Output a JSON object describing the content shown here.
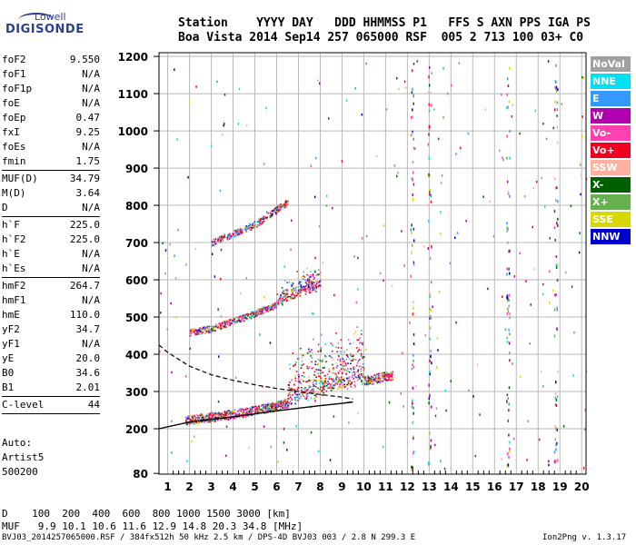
{
  "logo": {
    "line1": "Lowell",
    "line2": "DIGISONDE"
  },
  "header": {
    "line1": "Station    YYYY DAY   DDD HHMMSS P1   FFS S AXN PPS IGA PS",
    "line2": "Boa Vista 2014 Sep14 257 065000 RSF  005 2 713 100 03+ C0"
  },
  "params": {
    "g1": [
      {
        "name": "foF2",
        "value": "9.550"
      },
      {
        "name": "foF1",
        "value": "N/A"
      },
      {
        "name": "foF1p",
        "value": "N/A"
      },
      {
        "name": "foE",
        "value": "N/A"
      },
      {
        "name": "foEp",
        "value": "0.47"
      },
      {
        "name": "fxI",
        "value": "9.25"
      },
      {
        "name": "foEs",
        "value": "N/A"
      },
      {
        "name": "fmin",
        "value": "1.75"
      }
    ],
    "g2": [
      {
        "name": "MUF(D)",
        "value": "34.79"
      },
      {
        "name": "M(D)",
        "value": "3.64"
      },
      {
        "name": "D",
        "value": "N/A"
      }
    ],
    "g3": [
      {
        "name": "h`F",
        "value": "225.0"
      },
      {
        "name": "h`F2",
        "value": "225.0"
      },
      {
        "name": "h`E",
        "value": "N/A"
      },
      {
        "name": "h`Es",
        "value": "N/A"
      }
    ],
    "g4": [
      {
        "name": "hmF2",
        "value": "264.7"
      },
      {
        "name": "hmF1",
        "value": "N/A"
      },
      {
        "name": "hmE",
        "value": "110.0"
      },
      {
        "name": "yF2",
        "value": "34.7"
      },
      {
        "name": "yF1",
        "value": "N/A"
      },
      {
        "name": "yE",
        "value": "20.0"
      },
      {
        "name": "B0",
        "value": "34.6"
      },
      {
        "name": "B1",
        "value": "2.01"
      }
    ],
    "g5": [
      {
        "name": "C-level",
        "value": "44"
      }
    ]
  },
  "auto": {
    "line1": "Auto:",
    "line2": "Artist5",
    "line3": "500200"
  },
  "bottom": {
    "d_row": "D    100  200  400  600  800 1000 1500 3000 [km]",
    "muf_row": "MUF   9.9 10.1 10.6 11.6 12.9 14.8 20.3 34.8 [MHz]"
  },
  "footer": {
    "left": "BVJ03_2014257065000.RSF / 384fx512h 50 kHz 2.5 km / DPS-4D BVJ03 003 / 2.8 N 299.3 E",
    "right": "Ion2Png v. 1.3.17"
  },
  "legend": [
    {
      "label": "NoVal",
      "color": "#a0a0a0"
    },
    {
      "label": "NNE",
      "color": "#00e0f0"
    },
    {
      "label": "E",
      "color": "#3399ff"
    },
    {
      "label": "W",
      "color": "#b000b0"
    },
    {
      "label": "Vo-",
      "color": "#ff40b0"
    },
    {
      "label": "Vo+",
      "color": "#f00020"
    },
    {
      "label": "SSW",
      "color": "#ffb0a0"
    },
    {
      "label": "X-",
      "color": "#006000"
    },
    {
      "label": "X+",
      "color": "#66b050"
    },
    {
      "label": "SSE",
      "color": "#d8d800"
    },
    {
      "label": "NNW",
      "color": "#0000cc"
    }
  ],
  "chart_data": {
    "type": "scatter",
    "title": "",
    "xlabel": "",
    "ylabel": "",
    "xlim": [
      0.6,
      20.2
    ],
    "ylim": [
      78,
      1210
    ],
    "x_ticks": [
      1,
      2,
      3,
      4,
      5,
      6,
      7,
      8,
      9,
      10,
      11,
      12,
      13,
      14,
      15,
      16,
      17,
      18,
      19,
      20
    ],
    "y_ticks": [
      80,
      200,
      300,
      400,
      500,
      600,
      700,
      800,
      900,
      1000,
      1100,
      1200
    ],
    "grid": true,
    "echo_traces": [
      {
        "name": "",
        "x": [
          1.8,
          3,
          4,
          5,
          6,
          7,
          8,
          9,
          10,
          11.3
        ],
        "y": [
          225,
          232,
          240,
          250,
          262,
          280,
          300,
          318,
          330,
          345
        ]
      },
      {
        "name": "",
        "x": [
          2,
          3,
          4,
          5,
          6,
          7,
          8
        ],
        "y": [
          460,
          470,
          490,
          510,
          535,
          565,
          580
        ]
      },
      {
        "name": "",
        "x": [
          3,
          4,
          5,
          6,
          6.5
        ],
        "y": [
          700,
          725,
          750,
          790,
          810
        ]
      }
    ],
    "profile_solid": {
      "x": [
        0.6,
        2,
        3,
        4,
        5,
        6,
        7,
        8,
        9,
        9.5
      ],
      "y": [
        200,
        218,
        225,
        232,
        240,
        248,
        255,
        262,
        268,
        272
      ]
    },
    "profile_dashed": {
      "x": [
        0.6,
        1,
        2,
        3,
        4,
        5,
        6,
        7,
        8,
        9,
        9.5
      ],
      "y": [
        425,
        405,
        368,
        345,
        330,
        318,
        308,
        300,
        292,
        285,
        280
      ]
    }
  }
}
